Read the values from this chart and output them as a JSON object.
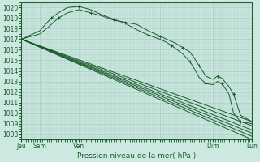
{
  "xlabel": "Pression niveau de la mer( hPa )",
  "ylim": [
    1007.5,
    1020.5
  ],
  "xlim": [
    0,
    100
  ],
  "yticks": [
    1008,
    1009,
    1010,
    1011,
    1012,
    1013,
    1014,
    1015,
    1016,
    1017,
    1018,
    1019,
    1020
  ],
  "xtick_positions": [
    0,
    8,
    25,
    60,
    83,
    100
  ],
  "xtick_labels": [
    "Jeu",
    "Sam",
    "Ven",
    "",
    "Dim",
    "Lun"
  ],
  "background_color": "#cce8e0",
  "grid_color": "#a8cfc4",
  "line_color": "#1a5c2a",
  "series": [
    {
      "x": [
        0,
        100
      ],
      "y": [
        1017.0,
        1009.2
      ]
    },
    {
      "x": [
        0,
        100
      ],
      "y": [
        1017.0,
        1008.8
      ]
    },
    {
      "x": [
        0,
        100
      ],
      "y": [
        1017.0,
        1008.4
      ]
    },
    {
      "x": [
        0,
        100
      ],
      "y": [
        1017.0,
        1008.1
      ]
    },
    {
      "x": [
        0,
        100
      ],
      "y": [
        1017.0,
        1007.8
      ]
    },
    {
      "x": [
        0,
        100
      ],
      "y": [
        1017.0,
        1007.5
      ]
    },
    {
      "x": [
        0,
        8,
        12,
        16,
        20,
        25,
        30,
        35,
        40,
        45,
        50,
        55,
        60,
        65,
        67,
        70,
        73,
        75,
        77,
        80,
        83,
        85,
        87,
        90,
        92,
        95,
        100
      ],
      "y": [
        1017.0,
        1017.5,
        1018.2,
        1019.0,
        1019.5,
        1019.8,
        1019.5,
        1019.2,
        1018.8,
        1018.6,
        1018.4,
        1017.8,
        1017.3,
        1016.8,
        1016.6,
        1016.2,
        1015.8,
        1015.2,
        1014.5,
        1013.5,
        1013.2,
        1013.5,
        1013.3,
        1012.5,
        1011.8,
        1009.8,
        1009.2
      ]
    },
    {
      "x": [
        0,
        8,
        10,
        13,
        16,
        20,
        25,
        30,
        35,
        40,
        45,
        50,
        55,
        60,
        63,
        65,
        67,
        70,
        73,
        75,
        77,
        80,
        83,
        85,
        87,
        90,
        92,
        95,
        100
      ],
      "y": [
        1017.0,
        1017.8,
        1018.3,
        1019.0,
        1019.5,
        1020.0,
        1020.1,
        1019.8,
        1019.3,
        1018.9,
        1018.5,
        1017.9,
        1017.4,
        1017.0,
        1016.7,
        1016.4,
        1016.1,
        1015.6,
        1014.9,
        1014.2,
        1013.4,
        1012.8,
        1012.7,
        1013.0,
        1012.8,
        1011.8,
        1010.0,
        1009.2,
        1009.0
      ]
    }
  ]
}
